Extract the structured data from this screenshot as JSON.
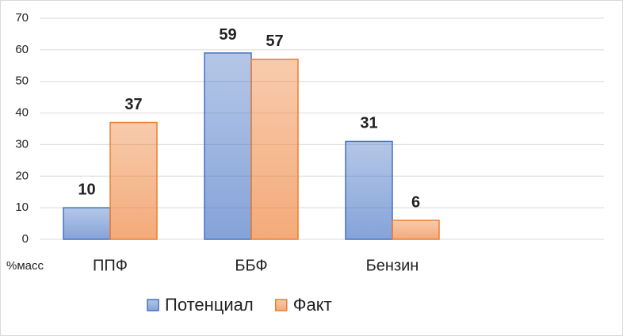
{
  "chart_data": {
    "type": "bar",
    "y_label": "%масс",
    "categories": [
      "ППФ",
      "ББФ",
      "Бензин",
      null
    ],
    "series": [
      {
        "name": "Потенциал",
        "color": "#4472c4",
        "values": [
          10,
          59,
          31,
          null
        ]
      },
      {
        "name": "Факт",
        "color": "#ed7d31",
        "values": [
          37,
          57,
          6,
          null
        ]
      }
    ],
    "ylim": [
      0,
      70
    ],
    "yticks": [
      0,
      10,
      20,
      30,
      40,
      50,
      60,
      70
    ],
    "grid": true,
    "legend": "bottom"
  }
}
